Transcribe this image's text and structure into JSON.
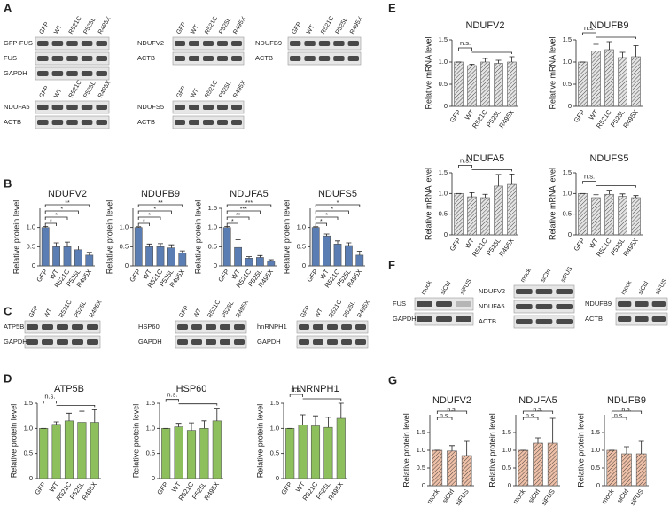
{
  "panel_labels": [
    "A",
    "B",
    "C",
    "D",
    "E",
    "F",
    "G"
  ],
  "blots": [
    {
      "lanes": [
        "GFP",
        "WT",
        "R521C",
        "P525L",
        "R495X"
      ],
      "rows": [
        "GFP-FUS",
        "FUS",
        "GAPDH"
      ]
    },
    {
      "lanes": [
        "GFP",
        "WT",
        "R521C",
        "P525L",
        "R495X"
      ],
      "rows": [
        "NDUFV2",
        "ACTB"
      ]
    },
    {
      "lanes": [
        "GFP",
        "WT",
        "R521C",
        "P525L",
        "R495X"
      ],
      "rows": [
        "NDUFB9",
        "ACTB"
      ]
    },
    {
      "lanes": [
        "GFP",
        "WT",
        "R521C",
        "P525L",
        "R495X"
      ],
      "rows": [
        "NDUFA5",
        "ACTB"
      ]
    },
    {
      "lanes": [
        "GFP",
        "WT",
        "R521C",
        "P525L",
        "R495X"
      ],
      "rows": [
        "NDUFS5",
        "ACTB"
      ]
    },
    {
      "lanes": [
        "GFP",
        "WT",
        "R521C",
        "P525L",
        "R495X"
      ],
      "rows": [
        "ATP5B",
        "GAPDH"
      ]
    },
    {
      "lanes": [
        "GFP",
        "WT",
        "R521C",
        "P525L",
        "R495X"
      ],
      "rows": [
        "HSP60",
        "GAPDH"
      ]
    },
    {
      "lanes": [
        "GFP",
        "WT",
        "R521C",
        "P525L",
        "R495X"
      ],
      "rows": [
        "hnRNPH1",
        "GAPDH"
      ]
    },
    {
      "lanes": [
        "mock",
        "siCtrl",
        "siFUS"
      ],
      "rows": [
        "FUS",
        "GAPDH"
      ]
    },
    {
      "lanes": [
        "mock",
        "siCtrl",
        "siFUS"
      ],
      "rows": [
        "NDUFV2",
        "NDUFA5",
        "ACTB"
      ]
    },
    {
      "lanes": [
        "mock",
        "siCtrl",
        "siFUS"
      ],
      "rows": [
        "NDUFB9",
        "ACTB"
      ]
    }
  ],
  "chart_data": [
    {
      "type": "bar",
      "title": "NDUFV2",
      "y_label": "Relative protein level",
      "categories": [
        "GFP",
        "WT",
        "R521C",
        "P525L",
        "R495X"
      ],
      "values": [
        1.0,
        0.5,
        0.5,
        0.42,
        0.28
      ],
      "errors": [
        0.03,
        0.1,
        0.12,
        0.1,
        0.07
      ],
      "color": "#5a7db3",
      "hatch": false,
      "ylim": [
        0,
        1.5
      ],
      "yticks": [
        0,
        0.5,
        {
          "value": 1,
          "label": "1.0"
        }
      ],
      "annotations": [
        "*",
        "*",
        "*",
        "**"
      ]
    },
    {
      "type": "bar",
      "title": "NDUFB9",
      "y_label": "Relative protein level",
      "categories": [
        "GFP",
        "WT",
        "R521C",
        "P525L",
        "R495X"
      ],
      "values": [
        1.0,
        0.5,
        0.5,
        0.47,
        0.33
      ],
      "errors": [
        0.02,
        0.07,
        0.08,
        0.08,
        0.06
      ],
      "color": "#5a7db3",
      "hatch": false,
      "ylim": [
        0,
        1.5
      ],
      "yticks": [
        0,
        0.5,
        {
          "value": 1,
          "label": "1.0"
        }
      ],
      "annotations": [
        "*",
        "*",
        "*",
        "**"
      ]
    },
    {
      "type": "bar",
      "title": "NDUFA5",
      "y_label": "Relative protein level",
      "categories": [
        "GFP",
        "WT",
        "R521C",
        "P525L",
        "R495X"
      ],
      "values": [
        1.0,
        0.48,
        0.2,
        0.22,
        0.12
      ],
      "errors": [
        0.03,
        0.2,
        0.04,
        0.05,
        0.04
      ],
      "color": "#5a7db3",
      "hatch": false,
      "ylim": [
        0,
        1.5
      ],
      "yticks": [
        0,
        0.5,
        {
          "value": 1,
          "label": "1.0"
        },
        1.5
      ],
      "annotations": [
        "*",
        "**",
        "***",
        "***"
      ]
    },
    {
      "type": "bar",
      "title": "NDUFS5",
      "y_label": "Relative protein level",
      "categories": [
        "GFP",
        "WT",
        "R521C",
        "P525L",
        "R495X"
      ],
      "values": [
        1.0,
        0.78,
        0.57,
        0.53,
        0.28
      ],
      "errors": [
        0.02,
        0.05,
        0.08,
        0.07,
        0.1
      ],
      "color": "#5a7db3",
      "hatch": false,
      "ylim": [
        0,
        1.5
      ],
      "yticks": [
        0,
        0.5,
        {
          "value": 1,
          "label": "1.0"
        }
      ],
      "annotations": [
        "*",
        "*",
        "*",
        "*"
      ]
    },
    {
      "type": "bar",
      "title": "ATP5B",
      "y_label": "Relative protein level",
      "categories": [
        "GFP",
        "WT",
        "R521C",
        "P525L",
        "R495X"
      ],
      "values": [
        1.0,
        1.08,
        1.15,
        1.12,
        1.12
      ],
      "errors": [
        0,
        0.05,
        0.15,
        0.22,
        0.25
      ],
      "color": "#8dbf5c",
      "hatch": false,
      "ylim": [
        0,
        1.5
      ],
      "yticks": [
        0,
        0.5,
        {
          "value": 1,
          "label": "1.0"
        },
        1.5
      ],
      "annotations": [
        "n.s."
      ]
    },
    {
      "type": "bar",
      "title": "HSP60",
      "y_label": "Relative protein level",
      "categories": [
        "GFP",
        "WT",
        "R521C",
        "P525L",
        "R495X"
      ],
      "values": [
        1.0,
        1.03,
        0.96,
        1.0,
        1.15
      ],
      "errors": [
        0,
        0.07,
        0.15,
        0.15,
        0.25
      ],
      "color": "#8dbf5c",
      "hatch": false,
      "ylim": [
        0,
        1.5
      ],
      "yticks": [
        0,
        0.5,
        {
          "value": 1,
          "label": "1.0"
        },
        1.5
      ],
      "annotations": [
        "n.s."
      ]
    },
    {
      "type": "bar",
      "title": "HNRNPH1",
      "y_label": "Relative protein level",
      "categories": [
        "GFP",
        "WT",
        "R521C",
        "P525L",
        "R495X"
      ],
      "values": [
        1.0,
        1.07,
        1.05,
        1.02,
        1.2
      ],
      "errors": [
        0,
        0.2,
        0.2,
        0.2,
        0.3
      ],
      "color": "#8dbf5c",
      "hatch": false,
      "ylim": [
        0,
        1.5
      ],
      "yticks": [
        0,
        0.5,
        {
          "value": 1,
          "label": "1.0"
        },
        1.5
      ],
      "annotations": [
        "n.s."
      ]
    },
    {
      "type": "bar",
      "title": "NDUFV2",
      "y_label": "Relative mRNA level",
      "categories": [
        "GFP",
        "WT",
        "R521C",
        "P525L",
        "R495X"
      ],
      "values": [
        1.0,
        0.92,
        1.0,
        0.97,
        1.0
      ],
      "errors": [
        0,
        0.03,
        0.08,
        0.07,
        0.12
      ],
      "color": "#e4e4e4",
      "hatch": true,
      "ylim": [
        0,
        1.5
      ],
      "yticks": [
        0,
        0.5,
        {
          "value": 1,
          "label": "1.0"
        },
        1.5
      ],
      "annotations": [
        "n.s."
      ]
    },
    {
      "type": "bar",
      "title": "NDUFB9",
      "y_label": "Relative mRNA level",
      "categories": [
        "GFP",
        "WT",
        "R521C",
        "P525L",
        "R495X"
      ],
      "values": [
        1.0,
        1.25,
        1.28,
        1.1,
        1.12
      ],
      "errors": [
        0,
        0.15,
        0.18,
        0.12,
        0.25
      ],
      "color": "#e4e4e4",
      "hatch": true,
      "ylim": [
        0,
        1.5
      ],
      "yticks": [
        0,
        0.5,
        {
          "value": 1,
          "label": "1.0"
        },
        1.5
      ],
      "annotations": [
        "n.s."
      ]
    },
    {
      "type": "bar",
      "title": "NDUFA5",
      "y_label": "Relative mRNA level",
      "categories": [
        "GFP",
        "WT",
        "R521C",
        "P525L",
        "R495X"
      ],
      "values": [
        1.0,
        0.92,
        0.9,
        1.18,
        1.22
      ],
      "errors": [
        0,
        0.1,
        0.08,
        0.28,
        0.25
      ],
      "color": "#e4e4e4",
      "hatch": true,
      "ylim": [
        0,
        1.5
      ],
      "yticks": [
        0,
        0.5,
        {
          "value": 1,
          "label": "1.0"
        },
        1.5
      ],
      "annotations": [
        "n.s."
      ]
    },
    {
      "type": "bar",
      "title": "NDUFS5",
      "y_label": "Relative mRNA level",
      "categories": [
        "GFP",
        "WT",
        "R521C",
        "P525L",
        "R495X"
      ],
      "values": [
        1.0,
        0.9,
        0.98,
        0.93,
        0.9
      ],
      "errors": [
        0,
        0.07,
        0.1,
        0.06,
        0.05
      ],
      "color": "#e4e4e4",
      "hatch": true,
      "ylim": [
        0,
        1.5
      ],
      "yticks": [
        0,
        0.5,
        {
          "value": 1,
          "label": "1.0"
        },
        1.5
      ],
      "annotations": [
        "n.s."
      ]
    },
    {
      "type": "bar",
      "title": "NDUFV2",
      "y_label": "Relative protein level",
      "categories": [
        "mock",
        "siCtrl",
        "siFUS"
      ],
      "values": [
        1.0,
        0.98,
        0.85
      ],
      "errors": [
        0,
        0.15,
        0.4
      ],
      "color": "#eec0a8",
      "hatch": true,
      "ylim": [
        0,
        2
      ],
      "yticks": [
        0,
        0.5,
        {
          "value": 1,
          "label": "1.0"
        },
        1.5
      ],
      "annotations": [
        "n.s.",
        "n.s."
      ]
    },
    {
      "type": "bar",
      "title": "NDUFA5",
      "y_label": "Relative protein level",
      "categories": [
        "mock",
        "siCtrl",
        "siFUS"
      ],
      "values": [
        1.0,
        1.2,
        1.2
      ],
      "errors": [
        0,
        0.15,
        0.7
      ],
      "color": "#eec0a8",
      "hatch": true,
      "ylim": [
        0,
        2
      ],
      "yticks": [
        0,
        0.5,
        {
          "value": 1,
          "label": "1.0"
        },
        1.5
      ],
      "annotations": [
        "n.s.",
        "n.s."
      ]
    },
    {
      "type": "bar",
      "title": "NDUFB9",
      "y_label": "Relative protein level",
      "categories": [
        "mock",
        "siCtrl",
        "siFUS"
      ],
      "values": [
        1.0,
        0.9,
        0.9
      ],
      "errors": [
        0,
        0.2,
        0.35
      ],
      "color": "#eec0a8",
      "hatch": true,
      "ylim": [
        0,
        2
      ],
      "yticks": [
        0,
        0.5,
        {
          "value": 1,
          "label": "1.0"
        },
        1.5
      ],
      "annotations": [
        "n.s.",
        "n.s."
      ]
    }
  ]
}
